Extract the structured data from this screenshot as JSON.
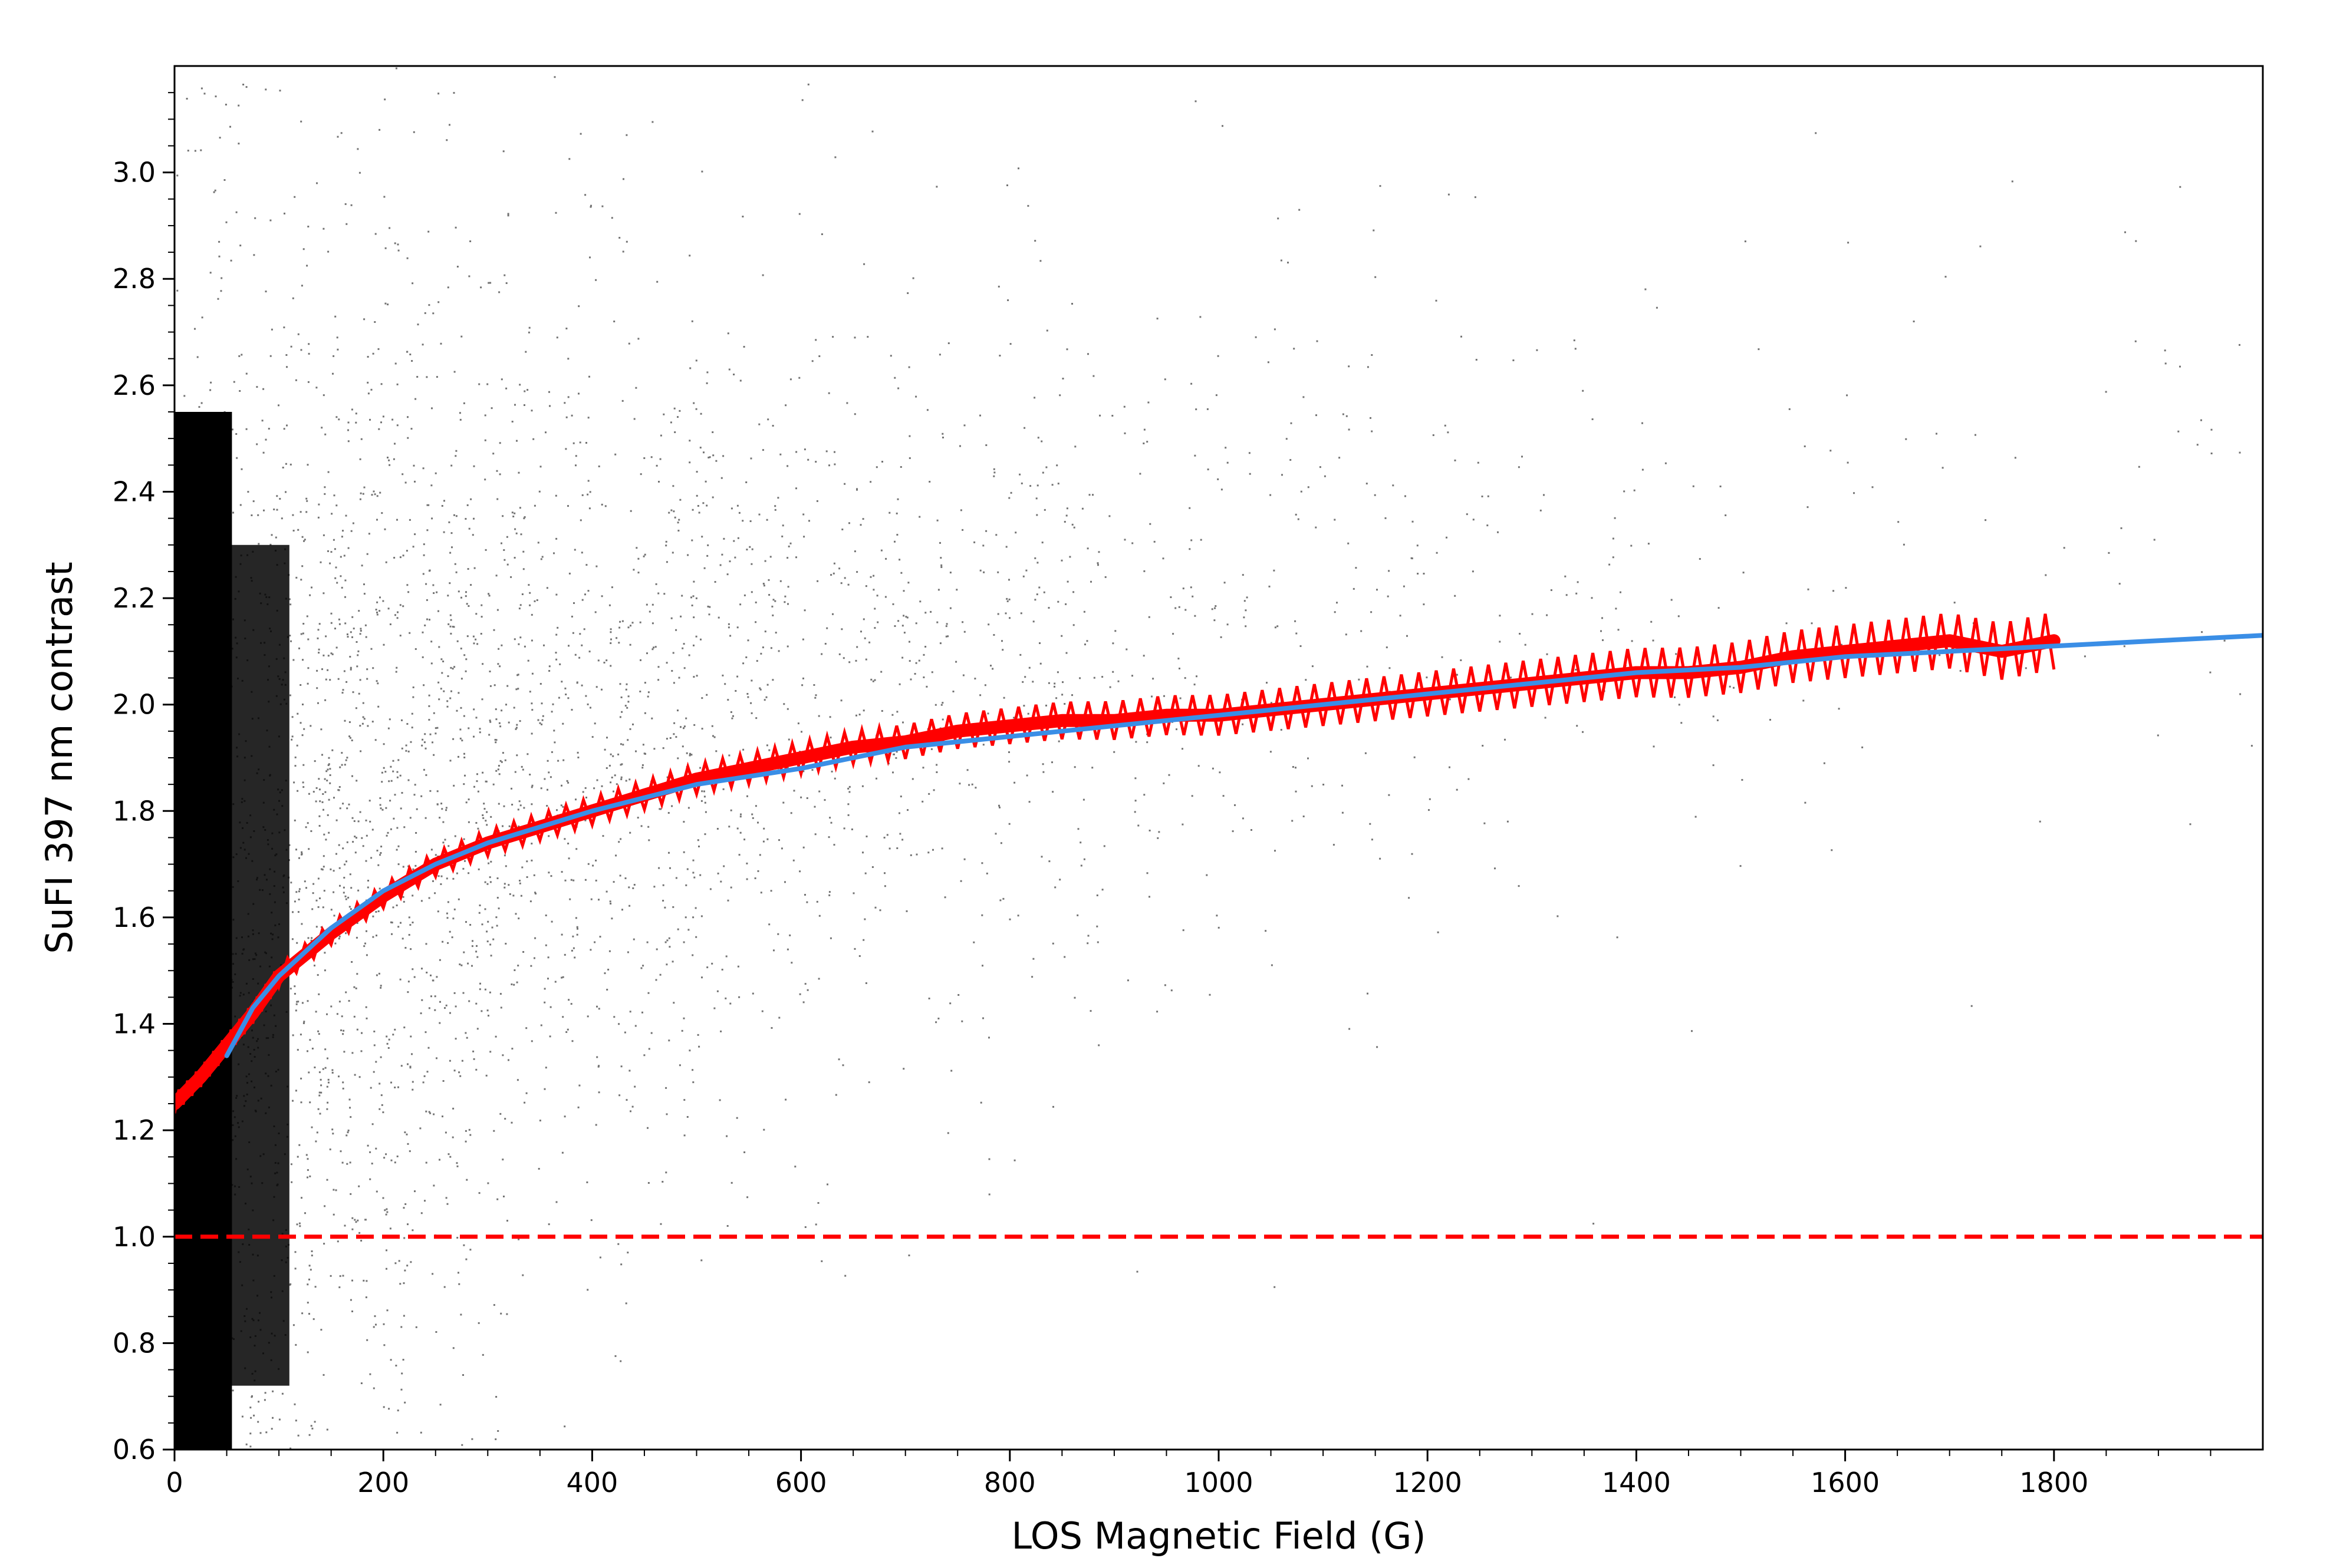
{
  "chart_data": {
    "type": "scatter",
    "title": "",
    "xlabel": "LOS Magnetic Field (G)",
    "ylabel": "SuFI 397 nm contrast",
    "xlim": [
      0,
      2000
    ],
    "ylim": [
      0.6,
      3.2
    ],
    "x_ticks": [
      0,
      200,
      400,
      600,
      800,
      1000,
      1200,
      1400,
      1600,
      1800
    ],
    "x_tick_labels": [
      "0",
      "200",
      "400",
      "600",
      "800",
      "1000",
      "1200",
      "1400",
      "1600",
      "1800"
    ],
    "y_ticks": [
      0.6,
      0.8,
      1.0,
      1.2,
      1.4,
      1.6,
      1.8,
      2.0,
      2.2,
      2.4,
      2.6,
      2.8,
      3.0
    ],
    "y_tick_labels": [
      "0.6",
      "0.8",
      "1.0",
      "1.2",
      "1.4",
      "1.6",
      "1.8",
      "2.0",
      "2.2",
      "2.4",
      "2.6",
      "2.8",
      "3.0"
    ],
    "grid": false,
    "legend": "none",
    "scatter_cloud": {
      "description_kind": "dense pixel scatter",
      "color": "#000000",
      "density_peak_x": 0,
      "spread": "broad, widening toward low field"
    },
    "series": [
      {
        "kind": "binned-mean",
        "color": "#ff0000",
        "x": [
          0,
          25,
          50,
          75,
          100,
          150,
          200,
          250,
          300,
          350,
          400,
          450,
          500,
          550,
          600,
          650,
          700,
          750,
          800,
          850,
          900,
          950,
          1000,
          1050,
          1100,
          1150,
          1200,
          1250,
          1300,
          1350,
          1400,
          1450,
          1500,
          1550,
          1600,
          1650,
          1700,
          1750,
          1800
        ],
        "y": [
          1.25,
          1.3,
          1.36,
          1.42,
          1.49,
          1.57,
          1.64,
          1.7,
          1.74,
          1.77,
          1.8,
          1.83,
          1.86,
          1.88,
          1.9,
          1.92,
          1.93,
          1.95,
          1.96,
          1.97,
          1.97,
          1.98,
          1.98,
          1.99,
          2.0,
          2.01,
          2.02,
          2.03,
          2.04,
          2.05,
          2.06,
          2.06,
          2.07,
          2.09,
          2.1,
          2.11,
          2.12,
          2.1,
          2.12
        ]
      },
      {
        "kind": "fit",
        "color": "#3a8ee6",
        "x": [
          50,
          75,
          100,
          150,
          200,
          250,
          300,
          350,
          400,
          500,
          600,
          700,
          800,
          900,
          1000,
          1100,
          1200,
          1300,
          1400,
          1500,
          1600,
          1700,
          1800,
          1900,
          2000
        ],
        "y": [
          1.34,
          1.43,
          1.49,
          1.58,
          1.65,
          1.7,
          1.74,
          1.77,
          1.8,
          1.85,
          1.88,
          1.92,
          1.94,
          1.96,
          1.98,
          2.0,
          2.02,
          2.04,
          2.06,
          2.07,
          2.09,
          2.1,
          2.11,
          2.12,
          2.13
        ]
      }
    ],
    "reference_lines": [
      {
        "kind": "horizontal",
        "y": 1.0,
        "color": "#ff0000",
        "style": "dashed"
      }
    ]
  }
}
